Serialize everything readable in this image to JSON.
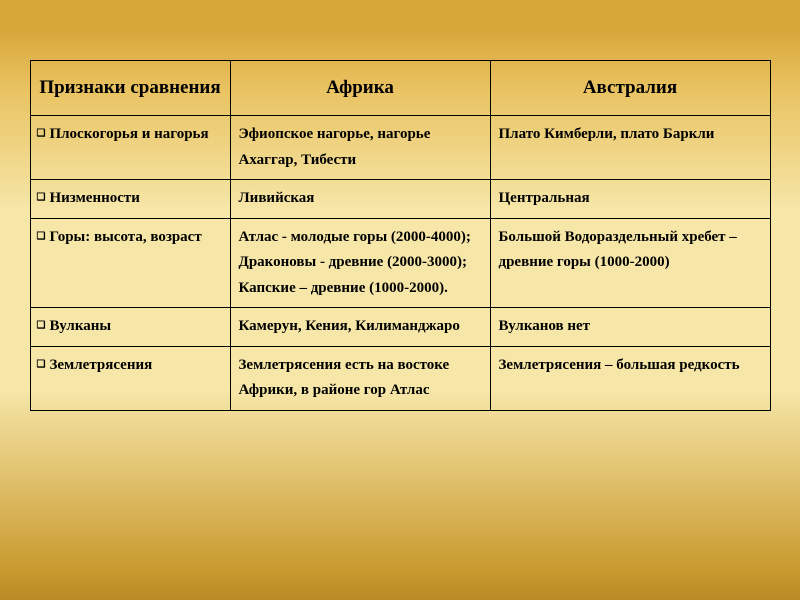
{
  "table": {
    "headers": {
      "col1": "Признаки сравнения",
      "col2": "Африка",
      "col3": "Австралия"
    },
    "rows": [
      {
        "feature": "Плоскогорья и нагорья",
        "africa": "Эфиопское нагорье, нагорье Ахаггар, Тибести",
        "australia": "Плато Кимберли, плато Баркли"
      },
      {
        "feature": "Низменности",
        "africa": "Ливийская",
        "australia": "Центральная"
      },
      {
        "feature": "Горы: высота, возраст",
        "africa": "Атлас - молодые горы (2000-4000); Драконовы - древние (2000-3000); Капские – древние (1000-2000).",
        "australia": "Большой Водораздельный хребет – древние горы (1000-2000)"
      },
      {
        "feature": "Вулканы",
        "africa": "Камерун, Кения, Килиманджаро",
        "australia": "Вулканов нет"
      },
      {
        "feature": "Землетрясения",
        "africa": "Землетрясения есть на востоке Африки, в районе гор Атлас",
        "australia": "Землетрясения – большая редкость"
      }
    ]
  },
  "style": {
    "bullet_glyph": "❑",
    "border_color": "#000000",
    "text_color": "#000000",
    "header_fontsize": 19,
    "cell_fontsize": 15,
    "gradient_stops": [
      "#d8a73a",
      "#e9c362",
      "#f6e6a8",
      "#c99a2f",
      "#b98a25"
    ]
  }
}
